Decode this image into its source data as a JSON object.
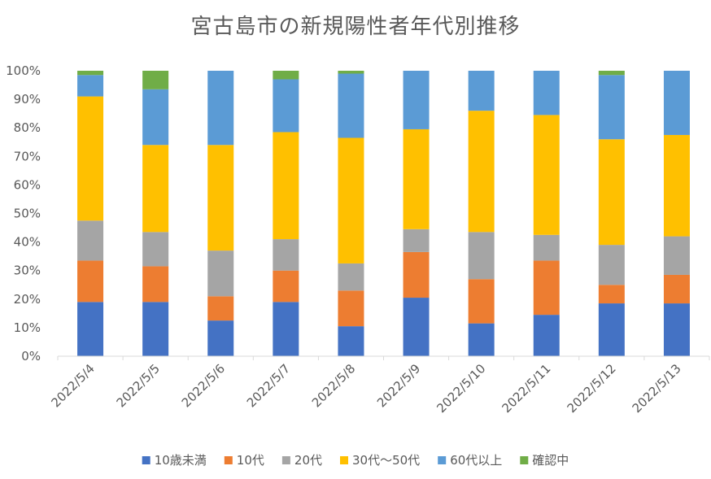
{
  "chart_data": {
    "type": "bar",
    "stacked": true,
    "normalized": true,
    "title": "宮古島市の新規陽性者年代別推移",
    "categories": [
      "2022/5/4",
      "2022/5/5",
      "2022/5/6",
      "2022/5/7",
      "2022/5/8",
      "2022/5/9",
      "2022/5/10",
      "2022/5/11",
      "2022/5/12",
      "2022/5/13"
    ],
    "ylim": [
      0,
      100
    ],
    "yticks": [
      "0%",
      "10%",
      "20%",
      "30%",
      "40%",
      "50%",
      "60%",
      "70%",
      "80%",
      "90%",
      "100%"
    ],
    "grid": false,
    "legend": "bottom",
    "series": [
      {
        "name": "10歳未満",
        "color": "#4472C4",
        "values": [
          19,
          19,
          12.5,
          19,
          10.5,
          20.5,
          11.5,
          14.5,
          18.5,
          18.5
        ]
      },
      {
        "name": "10代",
        "color": "#ED7D31",
        "values": [
          14.5,
          12.5,
          8.5,
          11,
          12.5,
          16,
          15.5,
          19,
          6.5,
          10
        ]
      },
      {
        "name": "20代",
        "color": "#A5A5A5",
        "values": [
          14,
          12,
          16,
          11,
          9.5,
          8,
          16.5,
          9,
          14,
          13.5
        ]
      },
      {
        "name": "30代〜50代",
        "color": "#FFC000",
        "values": [
          43.5,
          30.5,
          37,
          37.5,
          44,
          35,
          42.5,
          42,
          37,
          35.5
        ]
      },
      {
        "name": "60代以上",
        "color": "#5B9BD5",
        "values": [
          7.5,
          19.5,
          26,
          18.5,
          22.5,
          20.5,
          14,
          15.5,
          22.5,
          22.5
        ]
      },
      {
        "name": "確認中",
        "color": "#70AD47",
        "values": [
          1.5,
          6.5,
          0,
          3,
          1,
          0,
          0,
          0,
          1.5,
          0
        ]
      }
    ]
  }
}
